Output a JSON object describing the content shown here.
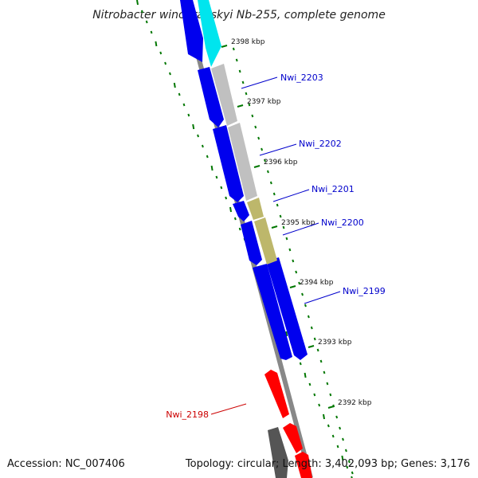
{
  "title": "Nitrobacter winogradskyi Nb-255, complete genome",
  "footer": {
    "accession": "Accession: NC_007406",
    "summary": "Topology: circular; Length: 3,402,093 bp; Genes: 3,176"
  },
  "ticks": [
    "2398 kbp",
    "2397 kbp",
    "2396 kbp",
    "2395 kbp",
    "2394 kbp",
    "2393 kbp",
    "2392 kbp"
  ],
  "genes": [
    {
      "name": "Nwi_2203",
      "color": "#0000cc"
    },
    {
      "name": "Nwi_2202",
      "color": "#0000cc"
    },
    {
      "name": "Nwi_2201",
      "color": "#0000cc"
    },
    {
      "name": "Nwi_2200",
      "color": "#0000cc"
    },
    {
      "name": "Nwi_2199",
      "color": "#0000cc"
    },
    {
      "name": "Nwi_2198",
      "color": "#cc0000"
    }
  ],
  "colors": {
    "cds_forward": "#0000ee",
    "cds_reverse": "#ff0000",
    "cog_cyan": "#00e5ee",
    "cog_gray": "#c0c0c0",
    "cog_khaki": "#bdb76b",
    "backbone": "#888888",
    "gc_skew": "#007700"
  }
}
